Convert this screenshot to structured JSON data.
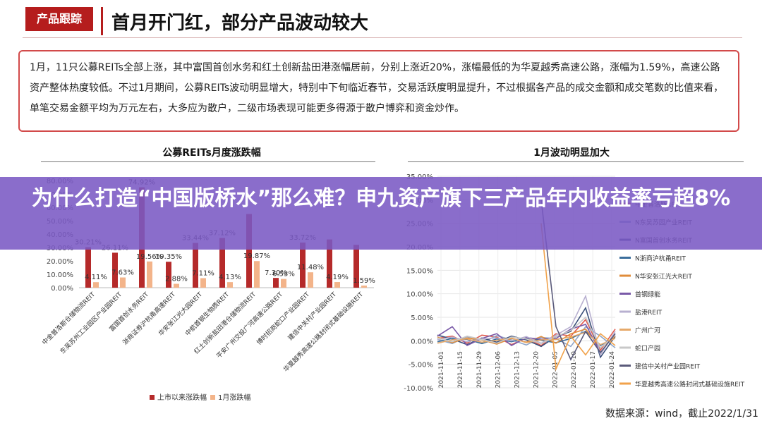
{
  "header": {
    "tag": "产品跟踪",
    "title": "首月开门红，部分产品波动较大"
  },
  "summary": {
    "text": "1月，11只公募REITs全部上涨，其中富国首创水务和红土创新盐田港涨幅居前，分别上涨近20%，涨幅最低的为华夏越秀高速公路，涨幅为1.59%，高速公路资产整体热度较低。不过1月期间，公募REITs波动明显增大，特别中下旬临近春节，交易活跃度明显提升，不过根据各产品的成交金额和成交笔数的比值来看，单笔交易金额平均为万元左右，大多应为散户，二级市场表现可能更多得源于散户博弈和资金炒作。"
  },
  "banner": {
    "text": "为什么打造“中国版桥水”那么难？申九资产旗下三产品年内收益率亏超8%"
  },
  "source": {
    "text": "数据来源：wind，截止2022/1/31"
  },
  "colors": {
    "accent": "#b51d1d",
    "series_dark": "#b52a2a",
    "series_light": "#f3b48a",
    "banner": "#7a59c4"
  },
  "chart_data": [
    {
      "type": "bar",
      "title": "公募REITs月度涨跌幅",
      "categories": [
        "中金普洛斯仓储物流REIT",
        "东吴苏州工业园区产业园REIT",
        "富国首创水务REIT",
        "浙商证券沪杭甬高速REIT",
        "华安张江光大园REIT",
        "中航首钢生物质REIT",
        "红土创新盐田港仓储物流REIT",
        "平安广州交投广河高速公路REIT",
        "博时招商蛇口产业园REIT",
        "建信中关村产业园REIT",
        "华夏越秀高速公路封闭式基础设施REIT"
      ],
      "series": [
        {
          "name": "上市以来涨跌幅",
          "values": [
            30.21,
            26.11,
            74.92,
            19.35,
            33.44,
            37.12,
            55.0,
            7.3,
            33.72,
            36.0,
            32.0
          ]
        },
        {
          "name": "1月涨跌幅",
          "values": [
            4.11,
            7.63,
            19.56,
            2.88,
            7.11,
            4.13,
            19.87,
            6.53,
            11.48,
            4.19,
            1.59
          ]
        }
      ],
      "data_labels": [
        "30.21%",
        "4.11%",
        "26.11%",
        "7.63%",
        "74.92%",
        "19.56%",
        "19.35%",
        "2.88%",
        "33.44%",
        "7.11%",
        "37.12%",
        "4.13%",
        "19.87%",
        "7.30%",
        "6.53%",
        "33.72%",
        "11.48%",
        "4.19%",
        "1.59%"
      ],
      "yticks": [
        "80.00%",
        "70.00%",
        "60.00%",
        "50.00%",
        "40.00%",
        "30.00%",
        "20.00%",
        "10.00%",
        "0.00%"
      ],
      "ylim": [
        0,
        80
      ],
      "legend": "bottom"
    },
    {
      "type": "line",
      "title": "1月波动明显加大",
      "x": [
        "2021-11-01",
        "2021-11-08",
        "2021-11-15",
        "2021-11-22",
        "2021-11-29",
        "2021-12-06",
        "2021-12-13",
        "2021-12-20",
        "2021-12-27",
        "2022-01-03",
        "2022-01-10",
        "2022-01-17",
        "2022-01-24"
      ],
      "xticks": [
        "2021-11-01",
        "2021-11-15",
        "2021-11-29",
        "2021-12-06",
        "2021-12-13",
        "2021-12-20",
        "2022-01-05",
        "2022-01-10",
        "2022-01-17",
        "2022-01-24"
      ],
      "yticks": [
        "35.00%",
        "30.00%",
        "25.00%",
        "20.00%",
        "15.00%",
        "10.00%",
        "5.00%",
        "0.00%",
        "-5.00%",
        "-10.00%"
      ],
      "ylim": [
        -10,
        35
      ],
      "grid": true,
      "legend": "right",
      "series": [
        {
          "name": "中金普洛斯REIT",
          "values": [
            0.5,
            1.0,
            -0.5,
            1.2,
            0.8,
            -0.8,
            0.6,
            -1.0,
            1.5,
            1.0,
            4.5,
            -2.0,
            2.5
          ]
        },
        {
          "name": "N东吴苏园产业REIT",
          "values": [
            0.3,
            -0.6,
            0.9,
            -0.4,
            1.1,
            0.2,
            -0.9,
            0.7,
            0.5,
            -1.2,
            3.0,
            1.0,
            -1.5
          ]
        },
        {
          "name": "N富国首创水务REIT",
          "values": [
            1.2,
            0.4,
            -0.8,
            0.6,
            -0.3,
            1.0,
            0.2,
            -1.2,
            0.9,
            2.0,
            7.0,
            -3.5,
            1.0
          ]
        },
        {
          "name": "N浙商沪杭甬REIT",
          "values": [
            -0.2,
            0.5,
            0.3,
            -0.6,
            0.4,
            -0.2,
            0.6,
            0.1,
            -0.4,
            0.5,
            2.0,
            -1.0,
            0.8
          ]
        },
        {
          "name": "N华安张江光大REIT",
          "values": [
            0.8,
            -0.4,
            0.6,
            0.2,
            -0.7,
            0.5,
            -0.3,
            0.9,
            -0.5,
            1.5,
            2.5,
            -1.5,
            1.0
          ]
        },
        {
          "name": "首钢绿能",
          "values": [
            1.0,
            3.0,
            -1.0,
            0.5,
            1.5,
            -1.0,
            0.7,
            0.3,
            0.5,
            2.5,
            3.5,
            -2.5,
            1.5
          ]
        },
        {
          "name": "盐港REIT",
          "values": [
            0.2,
            0.8,
            -0.2,
            0.4,
            0.6,
            0.0,
            0.9,
            -0.5,
            1.2,
            3.0,
            9.5,
            -3.0,
            2.0
          ]
        },
        {
          "name": "广州广河",
          "values": [
            -0.5,
            0.2,
            0.4,
            -0.3,
            0.1,
            0.6,
            -0.4,
            0.2,
            0.3,
            0.8,
            1.8,
            -0.8,
            0.5
          ]
        },
        {
          "name": "蛇口产园",
          "values": [
            0.6,
            -0.2,
            1.0,
            0.3,
            -0.5,
            0.8,
            0.4,
            -0.6,
            0.9,
            2.2,
            5.0,
            -1.5,
            1.2
          ]
        },
        {
          "name": "建信中关村产业园REIT",
          "values": [
            null,
            null,
            null,
            null,
            null,
            null,
            null,
            30.0,
            3.0,
            -4.0,
            2.0,
            -2.5,
            1.5
          ]
        },
        {
          "name": "华夏越秀高速公路封闭式基础设施REIT",
          "values": [
            null,
            null,
            null,
            null,
            null,
            null,
            null,
            25.0,
            -6.0,
            1.0,
            -3.0,
            1.5,
            -1.0
          ]
        }
      ]
    }
  ]
}
